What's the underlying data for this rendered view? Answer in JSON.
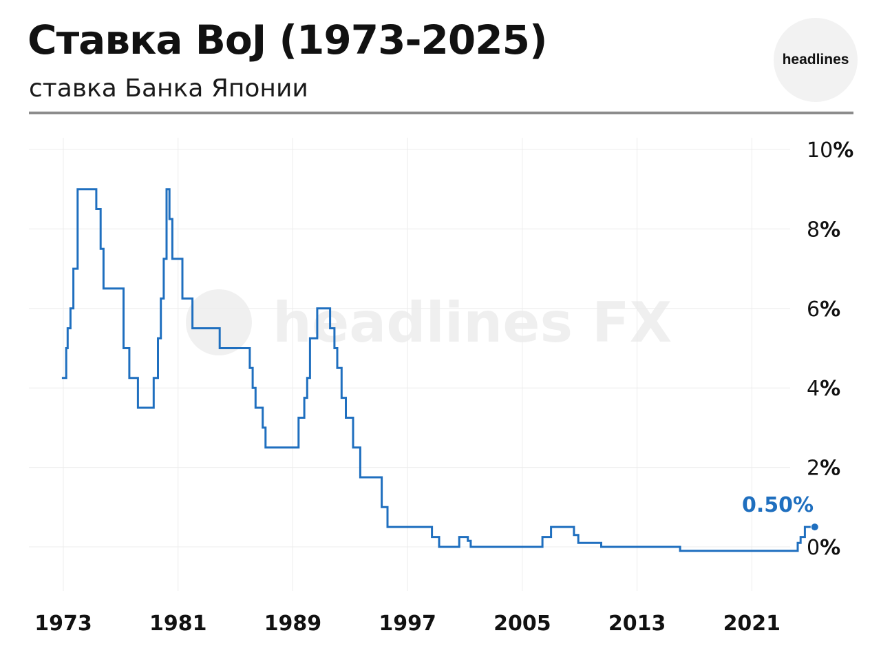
{
  "header": {
    "title": "Ставка BoJ (1973-2025)",
    "subtitle": "ставка Банка Японии",
    "logo_text": "headlines"
  },
  "watermark": {
    "text": "headlines FX"
  },
  "colors": {
    "line": "#1f6fbf",
    "grid": "#ececec",
    "rule": "#8c8c8c"
  },
  "chart_data": {
    "type": "line",
    "step": true,
    "xlim": [
      1973,
      2026
    ],
    "ylim": [
      -1,
      10
    ],
    "yticks": [
      0,
      2,
      4,
      6,
      8,
      10
    ],
    "ytick_labels": [
      "0%",
      "2%",
      "4%",
      "6%",
      "8%",
      "10%"
    ],
    "xticks": [
      1973,
      1981,
      1989,
      1997,
      2005,
      2013,
      2021
    ],
    "xtick_labels": [
      "1973",
      "1981",
      "1989",
      "1997",
      "2005",
      "2013",
      "2021"
    ],
    "grid": true,
    "series": [
      {
        "x": [
          1972.9,
          1973.2,
          1973.3,
          1973.5,
          1973.7,
          1973.9,
          1974.0,
          1975.3,
          1975.6,
          1975.8,
          1977.2,
          1977.6,
          1978.2,
          1979.3,
          1979.6,
          1979.8,
          1980.0,
          1980.2,
          1980.4,
          1980.6,
          1980.7,
          1981.3,
          1982.0,
          1983.9,
          1986.0,
          1986.2,
          1986.4,
          1986.9,
          1987.1,
          1989.4,
          1989.8,
          1990.0,
          1990.2,
          1990.7,
          1991.6,
          1991.9,
          1992.1,
          1992.4,
          1992.7,
          1993.2,
          1993.7,
          1995.2,
          1995.6,
          1998.7,
          1999.2,
          2000.6,
          2001.2,
          2001.4,
          2006.4,
          2007.0,
          2008.6,
          2008.9,
          2010.5,
          2016.0,
          2024.2,
          2024.4,
          2024.7,
          2025.1
        ],
        "y": [
          4.25,
          5.0,
          5.5,
          6.0,
          7.0,
          7.0,
          9.0,
          8.5,
          7.5,
          6.5,
          5.0,
          4.25,
          3.5,
          4.25,
          5.25,
          6.25,
          7.25,
          9.0,
          8.25,
          7.25,
          7.25,
          6.25,
          5.5,
          5.0,
          4.5,
          4.0,
          3.5,
          3.0,
          2.5,
          3.25,
          3.75,
          4.25,
          5.25,
          6.0,
          5.5,
          5.0,
          4.5,
          3.75,
          3.25,
          2.5,
          1.75,
          1.0,
          0.5,
          0.25,
          0.0,
          0.25,
          0.15,
          0.0,
          0.25,
          0.5,
          0.3,
          0.1,
          0.0,
          -0.1,
          0.1,
          0.25,
          0.5,
          0.5
        ]
      }
    ],
    "annotations": [
      {
        "text": "0.50%",
        "x": 2025.1,
        "y": 0.5
      }
    ]
  }
}
